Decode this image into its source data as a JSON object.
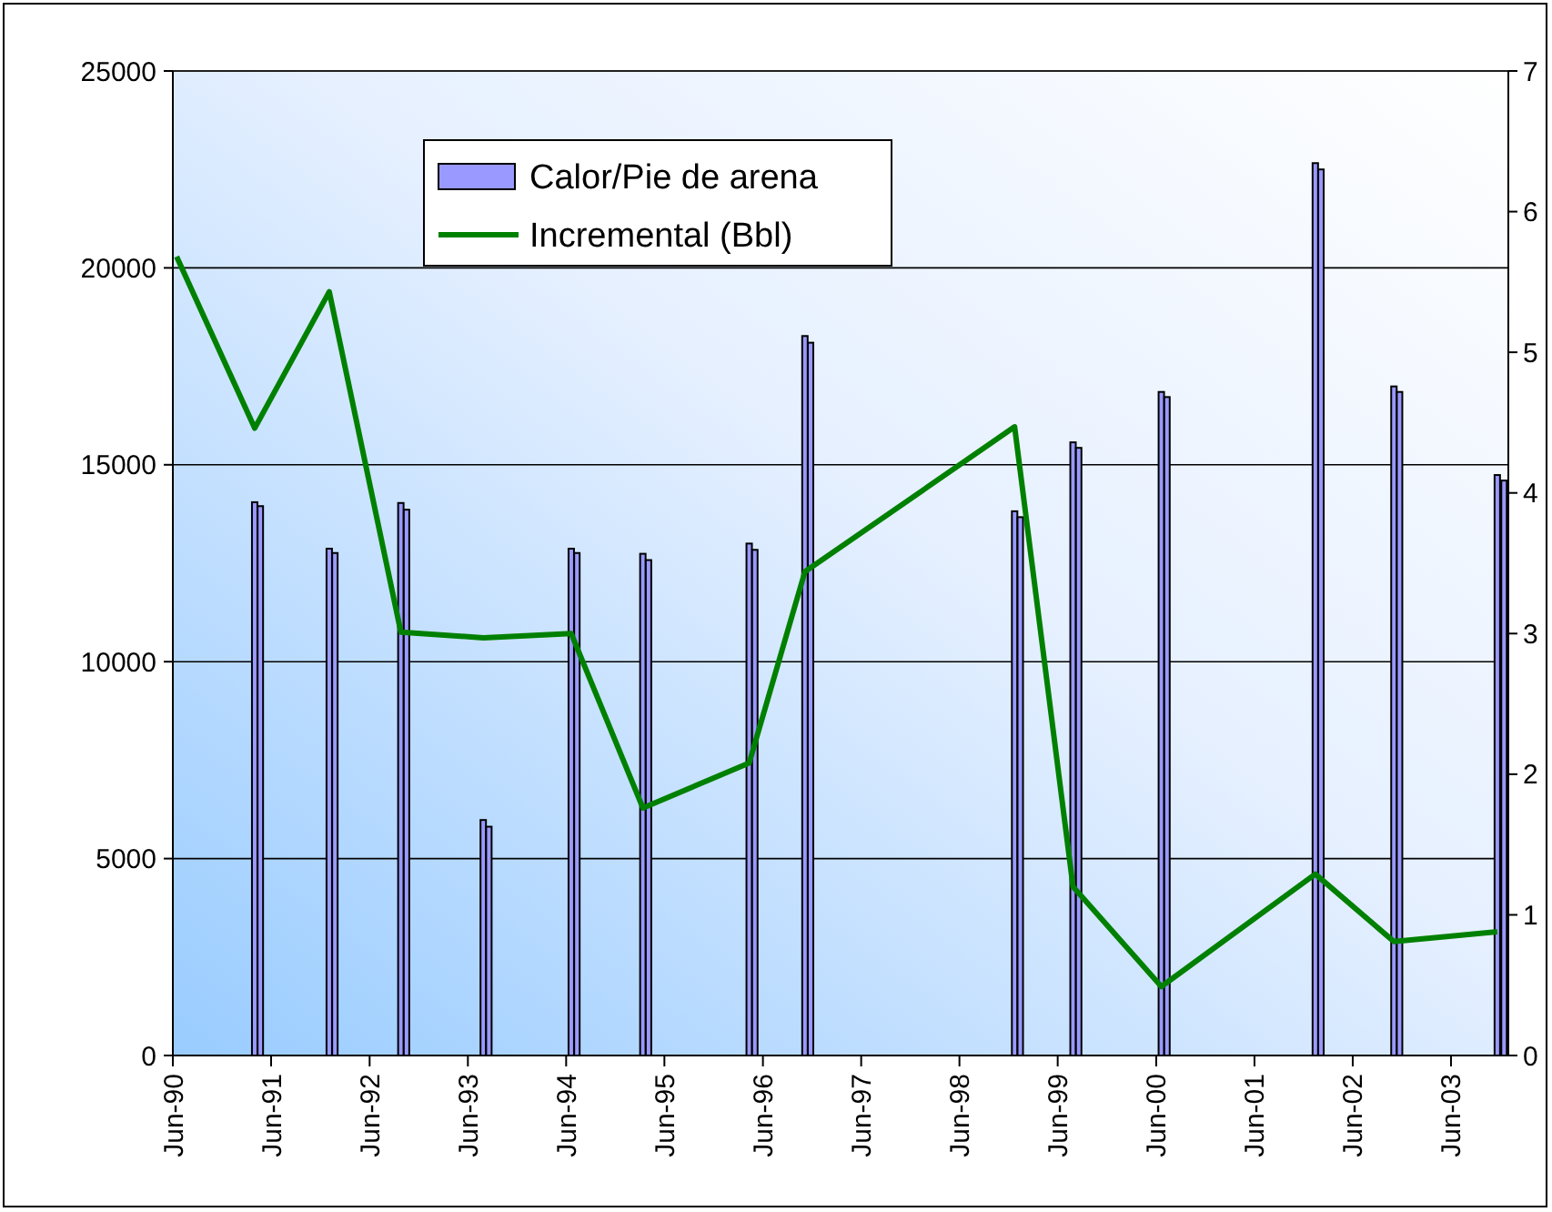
{
  "chart_data": {
    "type": "bar",
    "xlim": [
      "1990-06-01",
      "2003-12-31"
    ],
    "xticks": [
      {
        "value": "1990-06-01",
        "label": "Jun-90"
      },
      {
        "value": "1991-06-01",
        "label": "Jun-91"
      },
      {
        "value": "1992-06-01",
        "label": "Jun-92"
      },
      {
        "value": "1993-06-01",
        "label": "Jun-93"
      },
      {
        "value": "1994-06-01",
        "label": "Jun-94"
      },
      {
        "value": "1995-06-01",
        "label": "Jun-95"
      },
      {
        "value": "1996-06-01",
        "label": "Jun-96"
      },
      {
        "value": "1997-06-01",
        "label": "Jun-97"
      },
      {
        "value": "1998-06-01",
        "label": "Jun-98"
      },
      {
        "value": "1999-06-01",
        "label": "Jun-99"
      },
      {
        "value": "2000-06-01",
        "label": "Jun-00"
      },
      {
        "value": "2001-06-01",
        "label": "Jun-01"
      },
      {
        "value": "2002-06-01",
        "label": "Jun-02"
      },
      {
        "value": "2003-06-01",
        "label": "Jun-03"
      }
    ],
    "ylim": [
      0,
      25000
    ],
    "yticks": [
      0,
      5000,
      10000,
      15000,
      20000,
      25000
    ],
    "y2lim": [
      0,
      7
    ],
    "y2ticks": [
      0,
      1,
      2,
      3,
      4,
      5,
      6,
      7
    ],
    "grid": "y",
    "legend": "top",
    "series": [
      {
        "name": "Calor/Pie de arena",
        "color": "#9999ff",
        "x": [
          "1991-04-01",
          "1991-04-22",
          "1992-01-03",
          "1992-01-24",
          "1992-09-25",
          "1992-10-16",
          "1993-07-28",
          "1993-08-18",
          "1994-06-20",
          "1994-07-11",
          "1995-03-13",
          "1995-04-03",
          "1996-04-11",
          "1996-05-02",
          "1996-11-04",
          "1996-11-25",
          "1998-12-23",
          "1999-01-13",
          "1999-07-28",
          "1999-08-18",
          "2000-06-20",
          "2000-07-11",
          "2002-01-13",
          "2002-02-03",
          "2002-11-01",
          "2002-11-22",
          "2003-11-20",
          "2003-12-15"
        ],
        "values": [
          14050,
          13950,
          12870,
          12760,
          14030,
          13860,
          5980,
          5810,
          12870,
          12760,
          12740,
          12580,
          13000,
          12840,
          18270,
          18100,
          13820,
          13670,
          15570,
          15430,
          16850,
          16720,
          22660,
          22500,
          16990,
          16850,
          14740,
          14600
        ]
      },
      {
        "name": "Incremental (Bbl)",
        "type": "line",
        "axis": "y2",
        "color": "#008000",
        "x": [
          "1990-06-15",
          "1991-04-01",
          "1992-01-03",
          "1992-09-25",
          "1993-07-28",
          "1994-06-20",
          "1995-03-13",
          "1996-04-11",
          "1996-11-04",
          "1998-12-23",
          "1999-07-28",
          "2000-06-20",
          "2002-01-13",
          "2002-11-01",
          "2003-11-20"
        ],
        "values": [
          5.68,
          4.46,
          5.43,
          3.01,
          2.97,
          3.0,
          1.76,
          2.08,
          3.44,
          4.47,
          1.2,
          0.49,
          1.29,
          0.81,
          0.88
        ]
      }
    ]
  }
}
